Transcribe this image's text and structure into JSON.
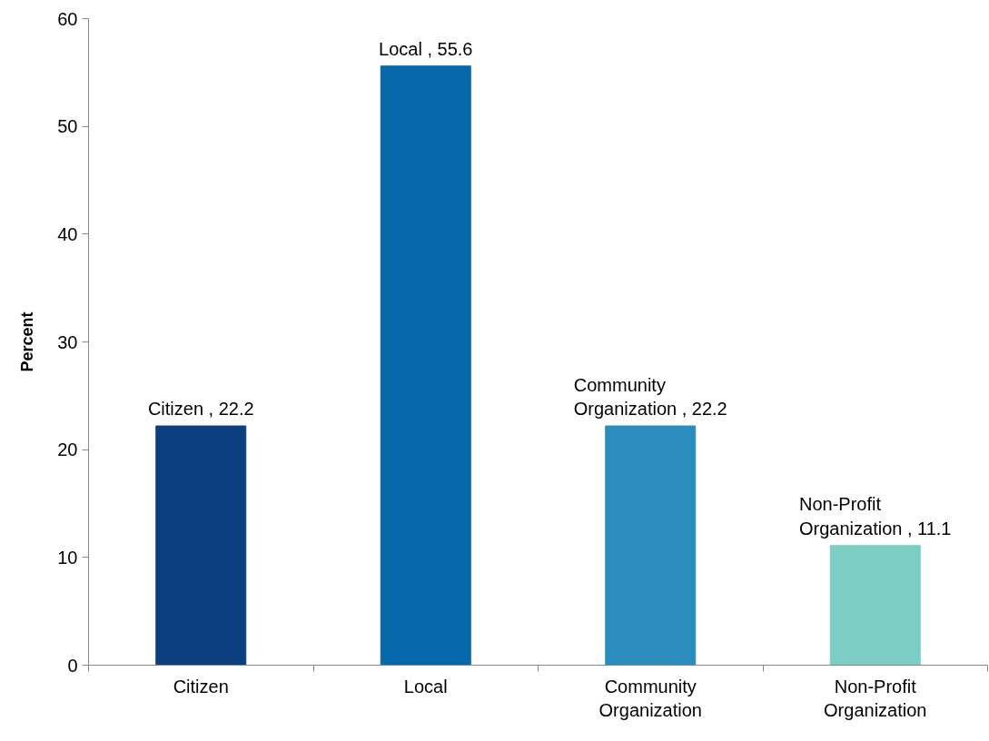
{
  "chart_data": {
    "type": "bar",
    "ylabel": "Percent",
    "categories": [
      "Citizen",
      "Local",
      "Community Organization",
      "Non-Profit Organization"
    ],
    "values": [
      22.2,
      55.6,
      22.2,
      11.1
    ],
    "colors": [
      "#0c3f7f",
      "#0868ac",
      "#2b8cbe",
      "#7ccdc4"
    ],
    "value_labels": [
      "Citizen , 22.2",
      "Local , 55.6",
      "Community Organization , 22.2",
      "Non-Profit Organization , 11.1"
    ],
    "ylim": [
      0,
      60
    ],
    "yticks": [
      0,
      10,
      20,
      30,
      40,
      50,
      60
    ],
    "grid": false
  }
}
